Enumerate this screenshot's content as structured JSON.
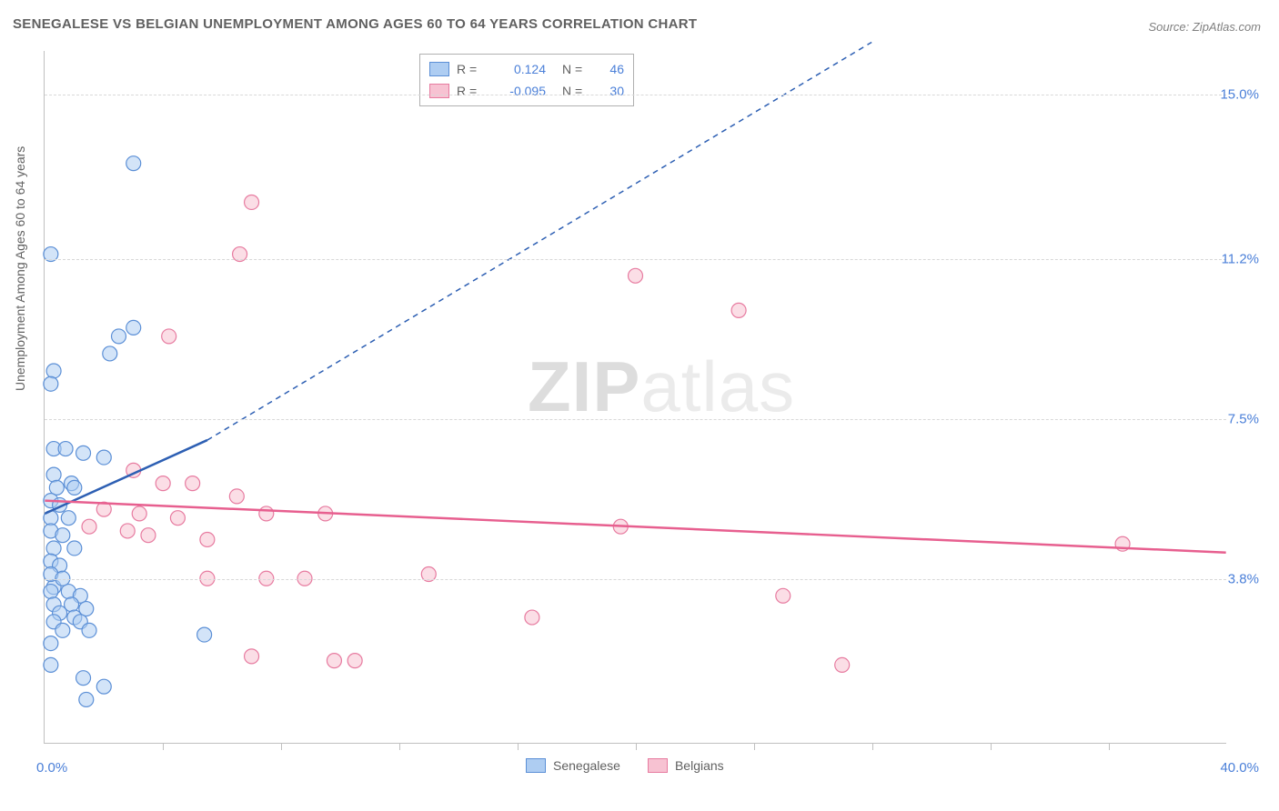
{
  "title": "SENEGALESE VS BELGIAN UNEMPLOYMENT AMONG AGES 60 TO 64 YEARS CORRELATION CHART",
  "source": "Source: ZipAtlas.com",
  "ylabel": "Unemployment Among Ages 60 to 64 years",
  "watermark": {
    "zip": "ZIP",
    "atlas": "atlas"
  },
  "chart": {
    "type": "scatter",
    "xlim": [
      0,
      40
    ],
    "ylim": [
      0,
      16
    ],
    "x_label_min": "0.0%",
    "x_label_max": "40.0%",
    "x_ticks": [
      4,
      8,
      12,
      16,
      20,
      24,
      28,
      32,
      36
    ],
    "y_gridlines": [
      3.8,
      7.5,
      11.2,
      15.0
    ],
    "y_labels": [
      "3.8%",
      "7.5%",
      "11.2%",
      "15.0%"
    ],
    "background_color": "#ffffff",
    "grid_color": "#d8d8d8",
    "axis_color": "#c0c0c0",
    "marker_radius": 8,
    "series": [
      {
        "name": "Senegalese",
        "fill": "#aecdf2",
        "stroke": "#5b8fd6",
        "fill_opacity": 0.55,
        "r_value": "0.124",
        "n_value": "46",
        "trendline": {
          "color": "#2d5fb3",
          "width": 2.5,
          "x1": 0,
          "y1": 5.3,
          "x2": 5.5,
          "y2": 7.0,
          "dash_x2": 28,
          "dash_y2": 16.2
        },
        "points": [
          [
            0.2,
            11.3
          ],
          [
            3.0,
            13.4
          ],
          [
            0.3,
            8.6
          ],
          [
            3.0,
            9.6
          ],
          [
            2.5,
            9.4
          ],
          [
            2.2,
            9.0
          ],
          [
            0.2,
            8.3
          ],
          [
            0.3,
            6.8
          ],
          [
            0.7,
            6.8
          ],
          [
            1.3,
            6.7
          ],
          [
            2.0,
            6.6
          ],
          [
            0.3,
            6.2
          ],
          [
            0.9,
            6.0
          ],
          [
            1.0,
            5.9
          ],
          [
            0.4,
            5.9
          ],
          [
            0.2,
            5.6
          ],
          [
            0.5,
            5.5
          ],
          [
            0.2,
            5.2
          ],
          [
            0.8,
            5.2
          ],
          [
            0.2,
            4.9
          ],
          [
            0.6,
            4.8
          ],
          [
            0.3,
            4.5
          ],
          [
            1.0,
            4.5
          ],
          [
            0.2,
            4.2
          ],
          [
            0.5,
            4.1
          ],
          [
            0.3,
            3.6
          ],
          [
            0.2,
            3.5
          ],
          [
            0.8,
            3.5
          ],
          [
            1.2,
            3.4
          ],
          [
            0.3,
            3.2
          ],
          [
            0.9,
            3.2
          ],
          [
            1.4,
            3.1
          ],
          [
            0.5,
            3.0
          ],
          [
            1.0,
            2.9
          ],
          [
            0.3,
            2.8
          ],
          [
            1.2,
            2.8
          ],
          [
            0.6,
            2.6
          ],
          [
            1.5,
            2.6
          ],
          [
            0.2,
            2.3
          ],
          [
            5.4,
            2.5
          ],
          [
            0.2,
            1.8
          ],
          [
            1.3,
            1.5
          ],
          [
            2.0,
            1.3
          ],
          [
            1.4,
            1.0
          ],
          [
            0.2,
            3.9
          ],
          [
            0.6,
            3.8
          ]
        ]
      },
      {
        "name": "Belgians",
        "fill": "#f7c2d2",
        "stroke": "#e77ba0",
        "fill_opacity": 0.55,
        "r_value": "-0.095",
        "n_value": "30",
        "trendline": {
          "color": "#e75f8f",
          "width": 2.5,
          "x1": 0,
          "y1": 5.6,
          "x2": 40,
          "y2": 4.4
        },
        "points": [
          [
            7.0,
            12.5
          ],
          [
            6.6,
            11.3
          ],
          [
            4.2,
            9.4
          ],
          [
            20.0,
            10.8
          ],
          [
            23.5,
            10.0
          ],
          [
            3.0,
            6.3
          ],
          [
            4.0,
            6.0
          ],
          [
            5.0,
            6.0
          ],
          [
            6.5,
            5.7
          ],
          [
            2.0,
            5.4
          ],
          [
            3.2,
            5.3
          ],
          [
            4.5,
            5.2
          ],
          [
            7.5,
            5.3
          ],
          [
            9.5,
            5.3
          ],
          [
            1.5,
            5.0
          ],
          [
            2.8,
            4.9
          ],
          [
            3.5,
            4.8
          ],
          [
            5.5,
            4.7
          ],
          [
            19.5,
            5.0
          ],
          [
            36.5,
            4.6
          ],
          [
            5.5,
            3.8
          ],
          [
            7.5,
            3.8
          ],
          [
            8.8,
            3.8
          ],
          [
            13.0,
            3.9
          ],
          [
            25.0,
            3.4
          ],
          [
            16.5,
            2.9
          ],
          [
            7.0,
            2.0
          ],
          [
            9.8,
            1.9
          ],
          [
            10.5,
            1.9
          ],
          [
            27.0,
            1.8
          ]
        ]
      }
    ]
  },
  "bottom_legend": [
    {
      "label": "Senegalese",
      "fill": "#aecdf2",
      "stroke": "#5b8fd6"
    },
    {
      "label": "Belgians",
      "fill": "#f7c2d2",
      "stroke": "#e77ba0"
    }
  ]
}
